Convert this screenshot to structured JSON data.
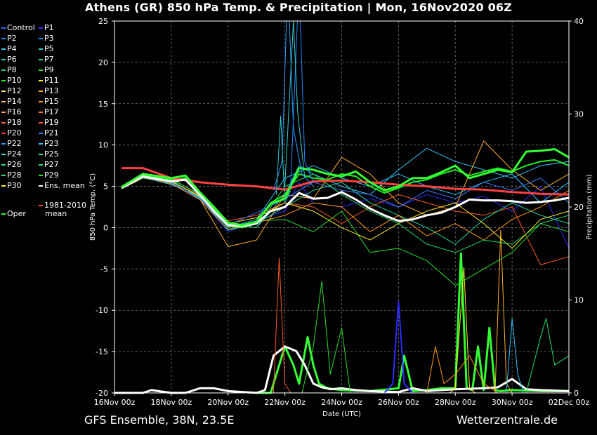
{
  "title": "Athens  (GR)  850 hPa Temp. & Precipitation | Mon, 16Nov2020 06Z",
  "footer": {
    "model": "GFS Ensemble, 38N, 23.5E",
    "source": "Wetterzentrale.de"
  },
  "legend": [
    {
      "label": "Control",
      "color": "#3a6bff"
    },
    {
      "label": "P1",
      "color": "#2b2bff"
    },
    {
      "label": "P2",
      "color": "#1e88ff"
    },
    {
      "label": "P3",
      "color": "#1e88ff"
    },
    {
      "label": "P4",
      "color": "#35c8ff"
    },
    {
      "label": "P5",
      "color": "#2ad0d0"
    },
    {
      "label": "P6",
      "color": "#1ed8a8"
    },
    {
      "label": "P7",
      "color": "#1ed8a8"
    },
    {
      "label": "P8",
      "color": "#2ad080"
    },
    {
      "label": "P9",
      "color": "#28e028"
    },
    {
      "label": "P10",
      "color": "#22ee22"
    },
    {
      "label": "P11",
      "color": "#ffee22"
    },
    {
      "label": "P12",
      "color": "#ffe08a"
    },
    {
      "label": "P13",
      "color": "#ffb020"
    },
    {
      "label": "P14",
      "color": "#ffc070"
    },
    {
      "label": "P15",
      "color": "#ff9a10"
    },
    {
      "label": "P16",
      "color": "#ffa060"
    },
    {
      "label": "P17",
      "color": "#ff7a30"
    },
    {
      "label": "P18",
      "color": "#ff7040"
    },
    {
      "label": "P19",
      "color": "#ff5a20"
    },
    {
      "label": "P20",
      "color": "#ff3a3a"
    },
    {
      "label": "P21",
      "color": "#3a7aff"
    },
    {
      "label": "P22",
      "color": "#2a9aff"
    },
    {
      "label": "P23",
      "color": "#25c8ff"
    },
    {
      "label": "P24",
      "color": "#35d0d0"
    },
    {
      "label": "P25",
      "color": "#22d8a0"
    },
    {
      "label": "P26",
      "color": "#20e090"
    },
    {
      "label": "P27",
      "color": "#20e060"
    },
    {
      "label": "P28",
      "color": "#38e080"
    },
    {
      "label": "P29",
      "color": "#28e028"
    },
    {
      "label": "P30",
      "color": "#ffee22"
    },
    {
      "label": "Ens. mean",
      "color": "#ffffff"
    },
    {
      "label": "Oper",
      "color": "#33ff33"
    },
    {
      "label": "1981-2010",
      "label2": "mean",
      "color": "#ff4040"
    }
  ],
  "chart_data": {
    "type": "line",
    "xlabel": "Date (UTC)",
    "ylabel": "850 hPa Temp. (°C)",
    "y2label": "Precipitation (mm)",
    "ylim": [
      -20,
      25
    ],
    "y2lim": [
      0,
      40
    ],
    "yticks": [
      -20,
      -15,
      -10,
      -5,
      0,
      5,
      10,
      15,
      20,
      25
    ],
    "y2ticks": [
      0,
      10,
      20,
      30,
      40
    ],
    "xlim_days": [
      0,
      16
    ],
    "xticks": [
      {
        "label": "16Nov 00z",
        "day": 0
      },
      {
        "label": "18Nov 00z",
        "day": 2
      },
      {
        "label": "20Nov 00z",
        "day": 4
      },
      {
        "label": "22Nov 00z",
        "day": 6
      },
      {
        "label": "24Nov 00z",
        "day": 8
      },
      {
        "label": "26Nov 00z",
        "day": 10
      },
      {
        "label": "28Nov 00z",
        "day": 12
      },
      {
        "label": "30Nov 00z",
        "day": 14
      },
      {
        "label": "02Dec 00z",
        "day": 16
      }
    ],
    "grid": true,
    "series": [
      {
        "name": "1981-2010 mean",
        "color": "#ff4040",
        "width": 3,
        "x": [
          0.25,
          1,
          2,
          3,
          4,
          5,
          6,
          7,
          8,
          9,
          10,
          11,
          12,
          13,
          14,
          15,
          16
        ],
        "y": [
          7.2,
          7.2,
          6.0,
          5.5,
          5.2,
          5.0,
          4.6,
          5.6,
          5.7,
          5.5,
          5.2,
          5.0,
          4.7,
          4.6,
          4.3,
          4.1,
          4.0
        ]
      },
      {
        "name": "Ens. mean",
        "color": "#ffffff",
        "width": 3,
        "x": [
          0.25,
          1,
          2,
          2.5,
          3,
          3.5,
          4,
          4.5,
          5,
          5.5,
          6,
          6.5,
          7,
          7.5,
          8,
          8.5,
          9,
          9.5,
          10,
          10.5,
          11,
          11.5,
          12,
          12.5,
          13,
          13.5,
          14,
          14.5,
          15,
          15.5,
          16
        ],
        "y": [
          4.8,
          6.2,
          5.6,
          5.8,
          4.0,
          2.0,
          0.3,
          0.2,
          0.5,
          2.0,
          2.5,
          4.2,
          3.5,
          3.6,
          4.3,
          3.4,
          2.3,
          1.5,
          0.8,
          1.0,
          1.5,
          1.8,
          2.5,
          3.4,
          3.3,
          3.3,
          3.2,
          3.0,
          3.1,
          3.3,
          3.6
        ]
      },
      {
        "name": "Oper",
        "color": "#33ff33",
        "width": 3,
        "x": [
          0.25,
          1,
          2,
          2.5,
          3,
          3.5,
          4,
          4.5,
          5,
          5.5,
          6,
          6.5,
          7,
          7.5,
          8,
          8.5,
          9,
          9.5,
          10,
          10.5,
          11,
          11.5,
          12,
          12.5,
          13,
          13.5,
          14,
          14.5,
          15,
          15.5,
          16
        ],
        "y": [
          4.9,
          6.5,
          6.0,
          6.3,
          4.3,
          2.5,
          0.6,
          0.3,
          0.7,
          2.9,
          3.5,
          7.2,
          7.0,
          6.5,
          6.2,
          6.8,
          5.5,
          4.5,
          5.0,
          6.0,
          6.0,
          6.7,
          7.5,
          6.0,
          6.5,
          7.0,
          6.7,
          9.2,
          9.3,
          9.5,
          8.5
        ]
      },
      {
        "name": "P10",
        "color": "#22ee22",
        "width": 2,
        "x": [
          0.25,
          1,
          2,
          2.5,
          3,
          3.5,
          4,
          4.5,
          5,
          5.5,
          6,
          6.5,
          7,
          7.5,
          8,
          8.5,
          9,
          9.5,
          10,
          10.5,
          11,
          11.5,
          12,
          12.5,
          13,
          13.5,
          14,
          14.5,
          15,
          15.5,
          16
        ],
        "y": [
          5.0,
          6.3,
          5.8,
          6.0,
          4.0,
          2.2,
          0.2,
          0.0,
          0.5,
          3.0,
          4.0,
          6.5,
          6.0,
          5.8,
          6.5,
          6.2,
          5.0,
          4.2,
          4.8,
          5.5,
          5.8,
          6.5,
          7.0,
          6.3,
          6.8,
          7.2,
          6.8,
          7.5,
          8.0,
          8.2,
          7.5
        ]
      },
      {
        "name": "P1",
        "color": "#2b2bff",
        "width": 1,
        "x": [
          0.25,
          1,
          2,
          3,
          4,
          5,
          6,
          6.5,
          7,
          8,
          9,
          10,
          11,
          12,
          13,
          14,
          15,
          16
        ],
        "y": [
          4.9,
          6.0,
          5.5,
          3.5,
          -0.5,
          0.8,
          2.0,
          5.5,
          3.0,
          2.5,
          3.5,
          2.5,
          4.0,
          3.0,
          3.8,
          2.0,
          5.0,
          -2.5
        ]
      },
      {
        "name": "P4",
        "color": "#35c8ff",
        "width": 1,
        "x": [
          0.25,
          1,
          2,
          3,
          4,
          5,
          6,
          6.5,
          7,
          8,
          9,
          10,
          11,
          12,
          13,
          14,
          15,
          16
        ],
        "y": [
          4.7,
          6.1,
          5.2,
          3.8,
          0.5,
          0.0,
          4.0,
          7.5,
          6.5,
          5.0,
          4.0,
          7.0,
          9.6,
          8.0,
          7.0,
          6.0,
          7.5,
          8.0
        ]
      },
      {
        "name": "P13",
        "color": "#ffb020",
        "width": 1,
        "x": [
          0.25,
          1,
          2,
          3,
          4,
          5,
          6,
          7,
          8,
          9,
          10,
          11,
          12,
          13,
          14,
          15,
          16
        ],
        "y": [
          4.8,
          6.0,
          5.5,
          3.5,
          -2.3,
          -1.5,
          4.0,
          3.5,
          8.5,
          6.5,
          3.0,
          1.5,
          2.5,
          10.5,
          7.0,
          4.5,
          6.5
        ]
      },
      {
        "name": "P19",
        "color": "#ff5a20",
        "width": 1,
        "x": [
          0.25,
          1,
          2,
          3,
          4,
          5,
          6,
          7,
          8,
          9,
          10,
          11,
          12,
          13,
          14,
          15,
          16
        ],
        "y": [
          4.8,
          6.2,
          5.6,
          3.9,
          0.8,
          1.5,
          3.0,
          2.5,
          0.5,
          2.5,
          4.0,
          3.0,
          2.0,
          1.5,
          2.5,
          -4.5,
          -3.5
        ]
      },
      {
        "name": "P9",
        "color": "#28e028",
        "width": 1,
        "x": [
          0.25,
          1,
          2,
          3,
          4,
          5,
          6,
          7,
          8,
          9,
          10,
          11,
          12,
          13,
          14,
          15,
          16
        ],
        "y": [
          4.9,
          6.3,
          5.9,
          4.0,
          0.0,
          0.8,
          1.0,
          -0.5,
          2.0,
          -3.0,
          -2.5,
          -4.0,
          -7.0,
          -5.0,
          -3.0,
          0.5,
          -0.5
        ]
      },
      {
        "name": "P6",
        "color": "#1ed8a8",
        "width": 1,
        "x": [
          0.25,
          1,
          2,
          3,
          4,
          5,
          6,
          7,
          8,
          9,
          10,
          11,
          12,
          13,
          14,
          15,
          16
        ],
        "y": [
          5.0,
          6.1,
          5.7,
          3.7,
          -0.3,
          0.5,
          2.5,
          4.5,
          5.5,
          3.0,
          1.5,
          0.0,
          -2.0,
          1.0,
          3.0,
          1.5,
          0.5
        ]
      },
      {
        "name": "P23",
        "color": "#25c8ff",
        "width": 1,
        "x": [
          0.25,
          1,
          2,
          3,
          4,
          5,
          6,
          7,
          8,
          9,
          10,
          11,
          12,
          13,
          14,
          15,
          16
        ],
        "y": [
          4.8,
          6.0,
          5.4,
          3.6,
          0.0,
          1.0,
          6.0,
          7.5,
          6.0,
          5.0,
          6.5,
          5.0,
          4.0,
          5.5,
          6.5,
          3.0,
          5.5
        ]
      },
      {
        "name": "P11",
        "color": "#ffee22",
        "width": 1,
        "x": [
          0.25,
          1,
          2,
          3,
          4,
          5,
          6,
          7,
          8,
          9,
          10,
          11,
          12,
          13,
          14,
          15,
          16
        ],
        "y": [
          4.7,
          6.0,
          5.6,
          3.8,
          0.5,
          1.2,
          3.0,
          2.0,
          0.0,
          -1.5,
          0.5,
          2.0,
          3.0,
          0.5,
          -2.5,
          1.0,
          2.0
        ]
      },
      {
        "name": "P21",
        "color": "#3a7aff",
        "width": 1,
        "x": [
          0.25,
          1,
          2,
          3,
          4,
          5,
          6,
          7,
          8,
          9,
          10,
          11,
          12,
          13,
          14,
          15,
          16
        ],
        "y": [
          4.9,
          6.1,
          5.5,
          3.5,
          0.3,
          1.8,
          3.5,
          5.5,
          4.5,
          4.0,
          2.5,
          4.5,
          3.5,
          5.5,
          4.5,
          6.0,
          3.0
        ]
      },
      {
        "name": "P15",
        "color": "#ff9a10",
        "width": 1,
        "x": [
          0.25,
          1,
          2,
          3,
          4,
          5,
          6,
          7,
          8,
          9,
          10,
          11,
          12,
          13,
          14,
          15,
          16
        ],
        "y": [
          4.8,
          6.2,
          5.3,
          3.4,
          -0.2,
          0.6,
          1.5,
          3.0,
          2.5,
          -0.5,
          1.5,
          -1.0,
          0.5,
          -1.5,
          1.0,
          2.5,
          4.5
        ]
      },
      {
        "name": "P27",
        "color": "#20e060",
        "width": 1,
        "x": [
          0.25,
          1,
          2,
          3,
          4,
          5,
          6,
          7,
          8,
          9,
          10,
          11,
          12,
          13,
          14,
          15,
          16
        ],
        "y": [
          4.9,
          6.0,
          5.8,
          4.1,
          0.4,
          0.0,
          5.0,
          6.5,
          4.0,
          2.0,
          0.5,
          -2.0,
          -3.0,
          -1.5,
          -2.0,
          0.5,
          1.5
        ]
      }
    ],
    "temp_spikes": [
      {
        "name": "P22",
        "color": "#2a9aff",
        "x": [
          5.6,
          5.9,
          6.1,
          6.3,
          6.6,
          7.0
        ],
        "y": [
          4.5,
          8.0,
          30.0,
          12.0,
          6.5,
          5.0
        ]
      },
      {
        "name": "P3",
        "color": "#1e88ff",
        "x": [
          6.2,
          6.5,
          6.7,
          7.0
        ],
        "y": [
          5.0,
          30.0,
          8.0,
          5.5
        ]
      },
      {
        "name": "P5",
        "color": "#2ad0d0",
        "x": [
          5.7,
          5.85,
          6.0,
          6.2
        ],
        "y": [
          4.0,
          13.5,
          3.0,
          4.5
        ]
      },
      {
        "name": "P24",
        "color": "#35d0d0",
        "x": [
          6.0,
          6.3,
          6.45,
          6.7
        ],
        "y": [
          5.0,
          25.0,
          14.0,
          6.0
        ]
      }
    ],
    "precipitation": [
      {
        "name": "Oper",
        "color": "#33ff33",
        "width": 3,
        "x": [
          5.0,
          5.5,
          5.7,
          6.0,
          6.3,
          6.5,
          6.8,
          7.0,
          7.2,
          7.5,
          8,
          9,
          10,
          10.2,
          10.5,
          11,
          11.5,
          12,
          12.2,
          12.4,
          12.6,
          12.8,
          13.0,
          13.2,
          13.4,
          13.6,
          14,
          15,
          16
        ],
        "y": [
          0,
          0,
          2,
          5,
          3,
          1,
          6,
          3,
          1,
          0.5,
          0.3,
          0.2,
          0.5,
          4,
          0.2,
          0.3,
          0.5,
          0.5,
          15,
          0.5,
          0.3,
          5,
          0.3,
          7,
          0.3,
          0.2,
          0.3,
          0.2,
          0.2
        ]
      },
      {
        "name": "Ens. mean",
        "color": "#ffffff",
        "width": 3,
        "x": [
          0,
          1,
          1.3,
          2,
          2.5,
          3,
          3.5,
          4,
          5,
          5.3,
          5.6,
          6,
          6.4,
          6.7,
          7,
          7.3,
          7.6,
          8,
          8.5,
          9,
          10,
          10.5,
          11,
          12,
          13,
          13.5,
          14,
          14.5,
          15,
          16
        ],
        "y": [
          0,
          0,
          0.3,
          0,
          0,
          0.5,
          0.5,
          0.2,
          0,
          0.3,
          4,
          5,
          4.5,
          3,
          1,
          0.6,
          0.4,
          0.5,
          0.3,
          0.2,
          0.1,
          0.5,
          0.2,
          0.4,
          0.5,
          0.6,
          1.5,
          0.4,
          0.3,
          0.2
        ]
      },
      {
        "name": "P1",
        "color": "#2b2bff",
        "width": 2,
        "x": [
          9.5,
          9.8,
          10.0,
          10.2,
          10.5
        ],
        "y": [
          0,
          1,
          9.8,
          1,
          0
        ]
      },
      {
        "name": "P13",
        "color": "#ffb020",
        "width": 1,
        "x": [
          13.4,
          13.6,
          13.8,
          14.0
        ],
        "y": [
          0,
          17.5,
          1,
          0
        ]
      },
      {
        "name": "P11",
        "color": "#ffee22",
        "width": 1,
        "x": [
          11.8,
          12.0,
          12.3,
          12.5,
          12.7
        ],
        "y": [
          0,
          0.5,
          13.5,
          0.5,
          0
        ]
      },
      {
        "name": "P19",
        "color": "#ff5a20",
        "width": 1,
        "x": [
          5.6,
          5.8,
          6.0,
          6.2
        ],
        "y": [
          0,
          14.5,
          1,
          0
        ]
      },
      {
        "name": "P9",
        "color": "#28e028",
        "width": 1,
        "x": [
          6.6,
          7.0,
          7.3,
          7.6,
          8.0,
          8.3
        ],
        "y": [
          0,
          5,
          12,
          2,
          7,
          0
        ]
      },
      {
        "name": "P23",
        "color": "#25c8ff",
        "width": 1,
        "x": [
          13.8,
          14.0,
          14.2,
          14.4
        ],
        "y": [
          0,
          8,
          2,
          0
        ]
      },
      {
        "name": "P27",
        "color": "#20e060",
        "width": 1,
        "x": [
          14.5,
          15.0,
          15.2,
          15.5,
          16
        ],
        "y": [
          0,
          6,
          8,
          3,
          4
        ]
      },
      {
        "name": "P15",
        "color": "#ff9a10",
        "width": 1,
        "x": [
          11.0,
          11.3,
          11.6,
          12,
          12.5,
          13,
          13.5
        ],
        "y": [
          0,
          5,
          1,
          2,
          4,
          1,
          0
        ]
      }
    ]
  }
}
